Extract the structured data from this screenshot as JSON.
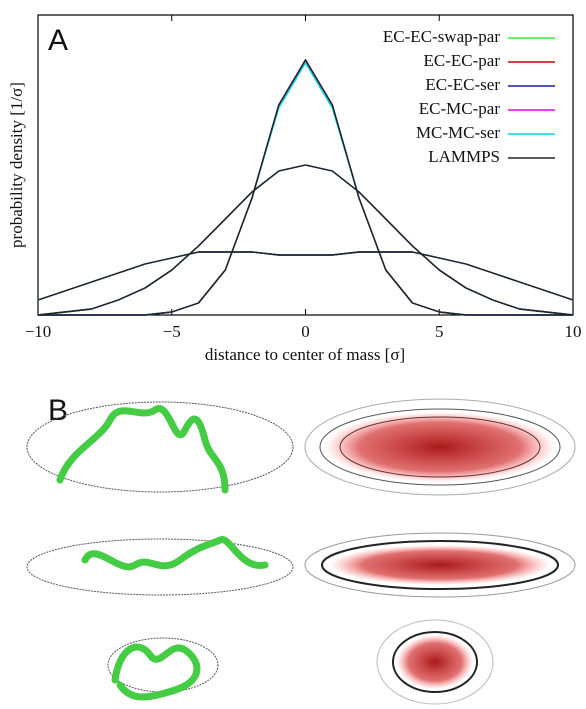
{
  "chart_data": {
    "type": "line",
    "panel_label": "A",
    "xlabel": "distance to center of mass [σ]",
    "ylabel": "probability density [1/σ]",
    "xlim": [
      -10,
      10
    ],
    "xticks": [
      {
        "value": -10,
        "label": "−10"
      },
      {
        "value": -5,
        "label": "−5"
      },
      0,
      5,
      10
    ],
    "ylim": [
      0,
      1
    ],
    "legend": "upper right",
    "x": [
      -10,
      -9,
      -8,
      -7,
      -6,
      -5,
      -4,
      -3,
      -2,
      -1,
      0,
      1,
      2,
      3,
      4,
      5,
      6,
      7,
      8,
      9,
      10
    ],
    "series": [
      {
        "name": "EC-EC-swap-par",
        "color": "#33ee33",
        "values": [
          [
            0,
            0,
            0,
            0,
            0,
            0.01,
            0.04,
            0.15,
            0.39,
            0.7,
            0.85,
            0.7,
            0.39,
            0.15,
            0.04,
            0.01,
            0,
            0,
            0,
            0,
            0
          ],
          [
            0,
            0.01,
            0.02,
            0.05,
            0.09,
            0.15,
            0.23,
            0.32,
            0.41,
            0.48,
            0.5,
            0.48,
            0.41,
            0.32,
            0.23,
            0.15,
            0.09,
            0.05,
            0.02,
            0.01,
            0
          ],
          [
            0.05,
            0.08,
            0.11,
            0.14,
            0.17,
            0.19,
            0.21,
            0.21,
            0.21,
            0.2,
            0.2,
            0.2,
            0.21,
            0.21,
            0.21,
            0.19,
            0.17,
            0.14,
            0.11,
            0.08,
            0.05
          ]
        ]
      },
      {
        "name": "EC-EC-par",
        "color": "#cc0000",
        "values": [
          [
            0,
            0,
            0,
            0,
            0,
            0.01,
            0.04,
            0.15,
            0.39,
            0.7,
            0.85,
            0.7,
            0.39,
            0.15,
            0.04,
            0.01,
            0,
            0,
            0,
            0,
            0
          ],
          [
            0,
            0.01,
            0.02,
            0.05,
            0.09,
            0.15,
            0.23,
            0.32,
            0.41,
            0.48,
            0.5,
            0.48,
            0.41,
            0.32,
            0.23,
            0.15,
            0.09,
            0.05,
            0.02,
            0.01,
            0
          ],
          [
            0.05,
            0.08,
            0.11,
            0.14,
            0.17,
            0.19,
            0.21,
            0.21,
            0.21,
            0.2,
            0.2,
            0.2,
            0.21,
            0.21,
            0.21,
            0.19,
            0.17,
            0.14,
            0.11,
            0.08,
            0.05
          ]
        ]
      },
      {
        "name": "EC-EC-ser",
        "color": "#1a1aa6",
        "values": [
          [
            0,
            0,
            0,
            0,
            0,
            0.01,
            0.04,
            0.15,
            0.39,
            0.7,
            0.85,
            0.7,
            0.39,
            0.15,
            0.04,
            0.01,
            0,
            0,
            0,
            0,
            0
          ],
          [
            0,
            0.01,
            0.02,
            0.05,
            0.09,
            0.15,
            0.23,
            0.32,
            0.41,
            0.48,
            0.5,
            0.48,
            0.41,
            0.32,
            0.23,
            0.15,
            0.09,
            0.05,
            0.02,
            0.01,
            0
          ],
          [
            0.05,
            0.08,
            0.11,
            0.14,
            0.17,
            0.19,
            0.21,
            0.21,
            0.21,
            0.2,
            0.2,
            0.2,
            0.21,
            0.21,
            0.21,
            0.19,
            0.17,
            0.14,
            0.11,
            0.08,
            0.05
          ]
        ]
      },
      {
        "name": "EC-MC-par",
        "color": "#ee00ee",
        "values": [
          [
            0,
            0,
            0,
            0,
            0,
            0.01,
            0.04,
            0.15,
            0.39,
            0.7,
            0.85,
            0.7,
            0.39,
            0.15,
            0.04,
            0.01,
            0,
            0,
            0,
            0,
            0
          ],
          [
            0,
            0.01,
            0.02,
            0.05,
            0.09,
            0.15,
            0.23,
            0.32,
            0.41,
            0.48,
            0.5,
            0.48,
            0.41,
            0.32,
            0.23,
            0.15,
            0.09,
            0.05,
            0.02,
            0.01,
            0
          ],
          [
            0.05,
            0.08,
            0.11,
            0.14,
            0.17,
            0.19,
            0.21,
            0.21,
            0.21,
            0.2,
            0.2,
            0.2,
            0.21,
            0.21,
            0.21,
            0.19,
            0.17,
            0.14,
            0.11,
            0.08,
            0.05
          ]
        ]
      },
      {
        "name": "MC-MC-ser",
        "color": "#00d8e0",
        "values": [
          [
            0,
            0,
            0,
            0,
            0,
            0.01,
            0.04,
            0.15,
            0.39,
            0.69,
            0.84,
            0.69,
            0.39,
            0.15,
            0.04,
            0.01,
            0,
            0,
            0,
            0,
            0
          ],
          [
            0,
            0.01,
            0.02,
            0.05,
            0.09,
            0.15,
            0.23,
            0.32,
            0.41,
            0.48,
            0.5,
            0.48,
            0.41,
            0.32,
            0.23,
            0.15,
            0.09,
            0.05,
            0.02,
            0.01,
            0
          ],
          [
            0.05,
            0.08,
            0.11,
            0.14,
            0.17,
            0.19,
            0.21,
            0.21,
            0.21,
            0.2,
            0.2,
            0.2,
            0.21,
            0.21,
            0.21,
            0.19,
            0.17,
            0.14,
            0.11,
            0.08,
            0.05
          ]
        ]
      },
      {
        "name": "LAMMPS",
        "color": "#222222",
        "values": [
          [
            0,
            0,
            0,
            0,
            0,
            0.01,
            0.04,
            0.15,
            0.39,
            0.7,
            0.85,
            0.7,
            0.39,
            0.15,
            0.04,
            0.01,
            0,
            0,
            0,
            0,
            0
          ],
          [
            0,
            0.01,
            0.02,
            0.05,
            0.09,
            0.15,
            0.23,
            0.32,
            0.41,
            0.48,
            0.5,
            0.48,
            0.41,
            0.32,
            0.23,
            0.15,
            0.09,
            0.05,
            0.02,
            0.01,
            0
          ],
          [
            0.05,
            0.08,
            0.11,
            0.14,
            0.17,
            0.19,
            0.21,
            0.21,
            0.21,
            0.2,
            0.2,
            0.2,
            0.21,
            0.21,
            0.21,
            0.19,
            0.17,
            0.14,
            0.11,
            0.08,
            0.05
          ]
        ]
      }
    ]
  },
  "panel_b": {
    "label": "B"
  }
}
